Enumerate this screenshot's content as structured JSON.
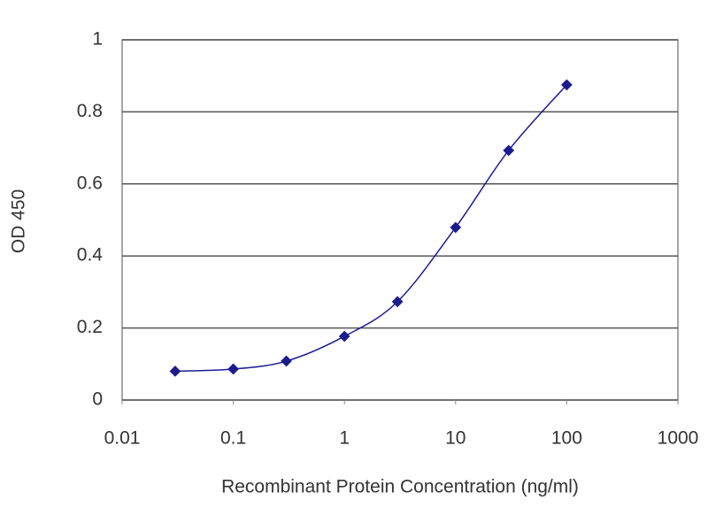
{
  "chart_data": {
    "type": "line",
    "xlabel": "Recombinant Protein Concentration (ng/ml)",
    "ylabel": "OD 450",
    "x": [
      0.03,
      0.1,
      0.3,
      1,
      3,
      10,
      30,
      100
    ],
    "series": [
      {
        "color": "#1c1c8f",
        "values": [
          0.08,
          0.086,
          0.108,
          0.177,
          0.273,
          0.479,
          0.693,
          0.875
        ]
      }
    ],
    "xscale": "log",
    "xlim": [
      0.01,
      1000
    ],
    "xticks": [
      0.01,
      0.1,
      1,
      10,
      100,
      1000
    ],
    "ylim": [
      0,
      1
    ],
    "yticks": [
      0,
      0.2,
      0.4,
      0.6,
      0.8,
      1
    ],
    "grid": true
  }
}
